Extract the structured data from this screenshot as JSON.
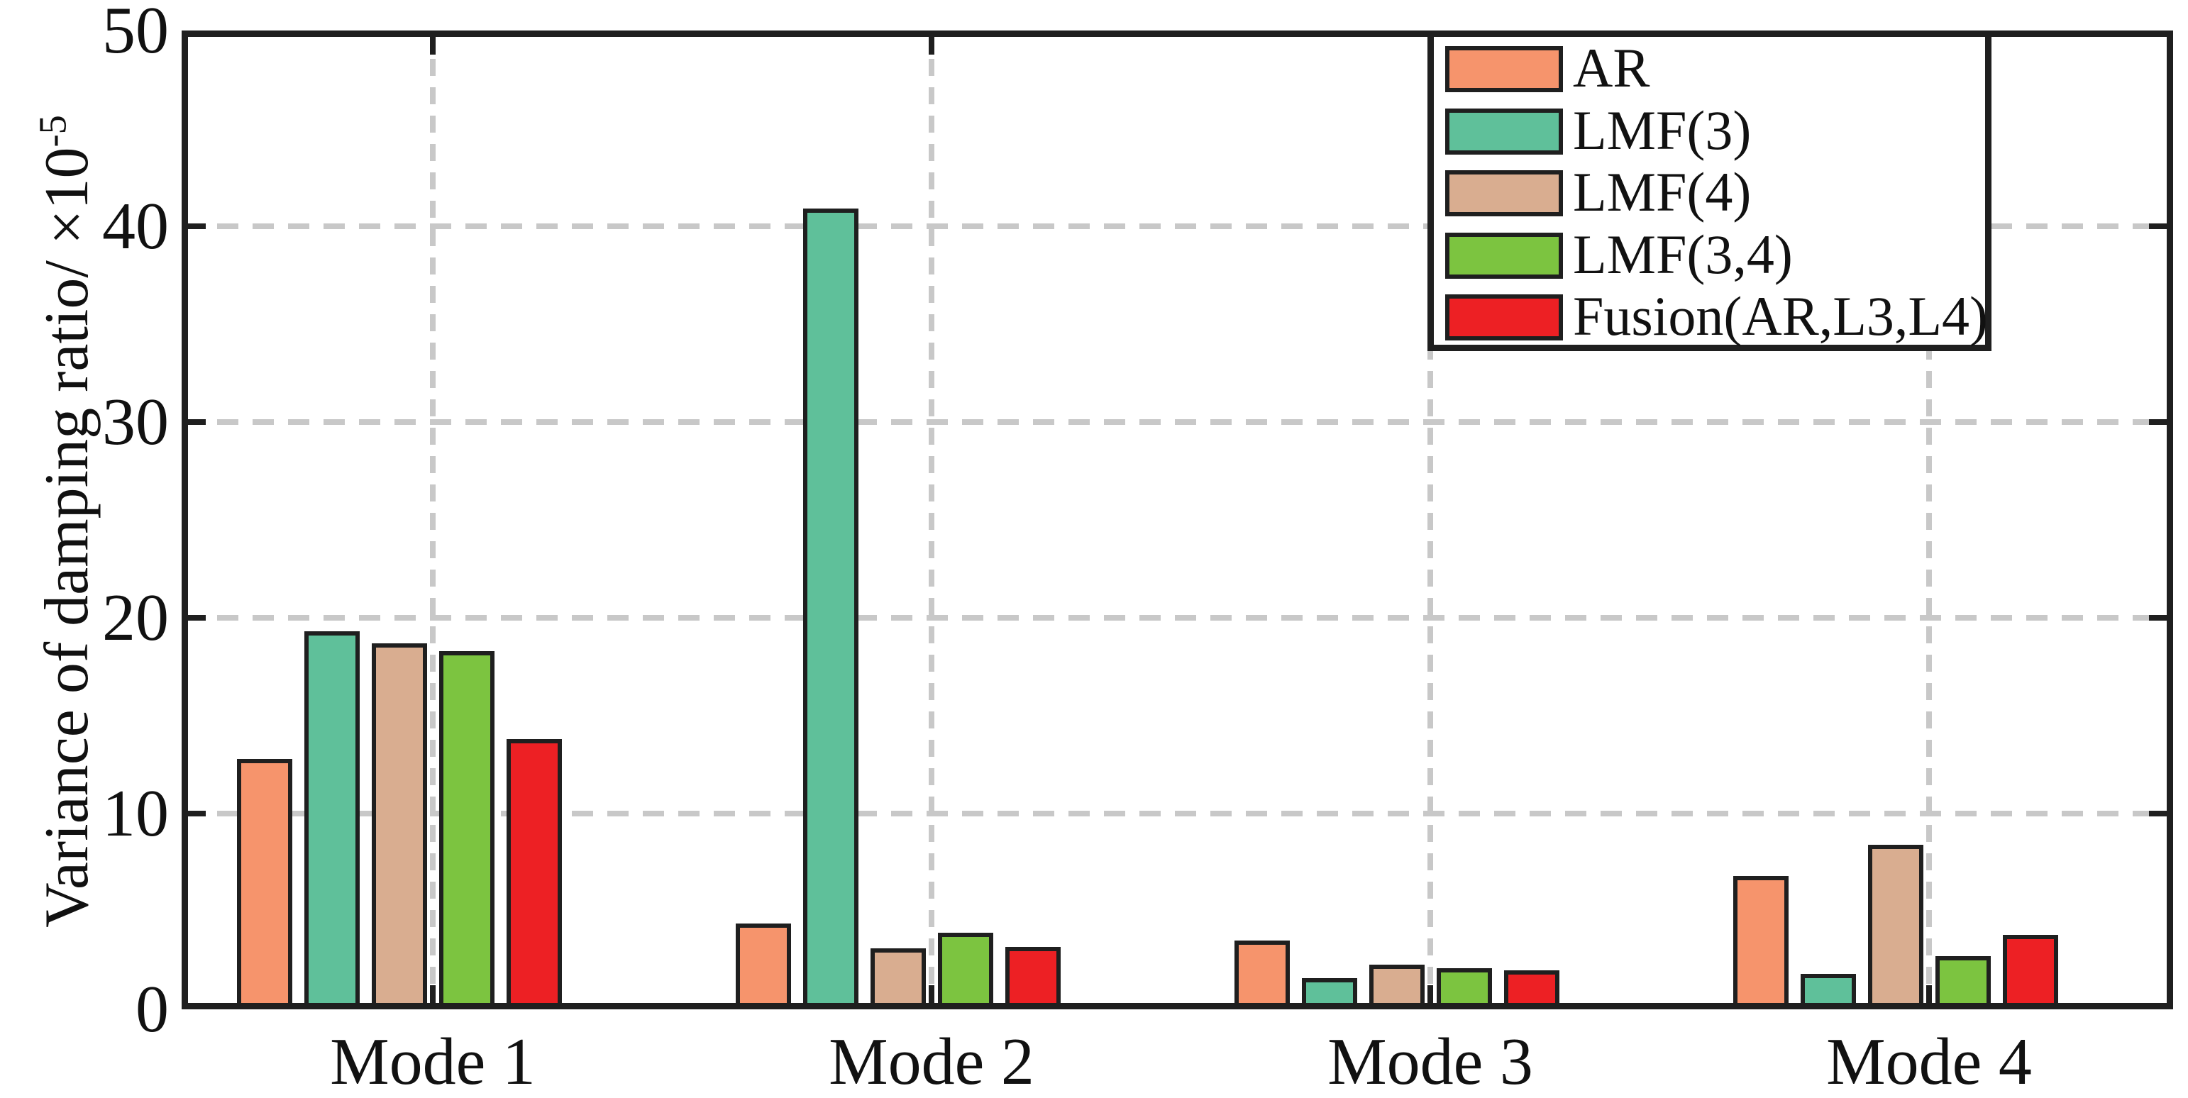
{
  "chart_data": {
    "type": "bar",
    "title": "",
    "categories": [
      "Mode 1",
      "Mode 2",
      "Mode 3",
      "Mode 4"
    ],
    "series": [
      {
        "name": "AR",
        "color": "#F6946C",
        "values": [
          12.8,
          4.4,
          3.5,
          6.8
        ]
      },
      {
        "name": "LMF(3)",
        "color": "#5FC09A",
        "values": [
          19.3,
          40.9,
          1.6,
          1.8
        ]
      },
      {
        "name": "LMF(4)",
        "color": "#D9AD90",
        "values": [
          18.7,
          3.1,
          2.3,
          8.4
        ]
      },
      {
        "name": "LMF(3,4)",
        "color": "#7CC440",
        "values": [
          18.3,
          3.9,
          2.1,
          2.7
        ]
      },
      {
        "name": "Fusion(AR,L3,L4)",
        "color": "#ED2024",
        "values": [
          13.8,
          3.2,
          2.0,
          3.8
        ]
      }
    ],
    "xlabel": "",
    "ylabel": "Variance of damping ratio/ ×10^-5",
    "ylabel_base": "Variance of damping ratio/ ×10",
    "ylabel_exponent": "-5",
    "yticks": [
      0,
      10,
      20,
      30,
      40,
      50
    ],
    "ylim": [
      0,
      50
    ],
    "grid": "dashed",
    "legend_position": "top-right",
    "axis_color": "#1F1F1F",
    "grid_color": "#C8C8C8",
    "background": "#FFFFFF"
  }
}
